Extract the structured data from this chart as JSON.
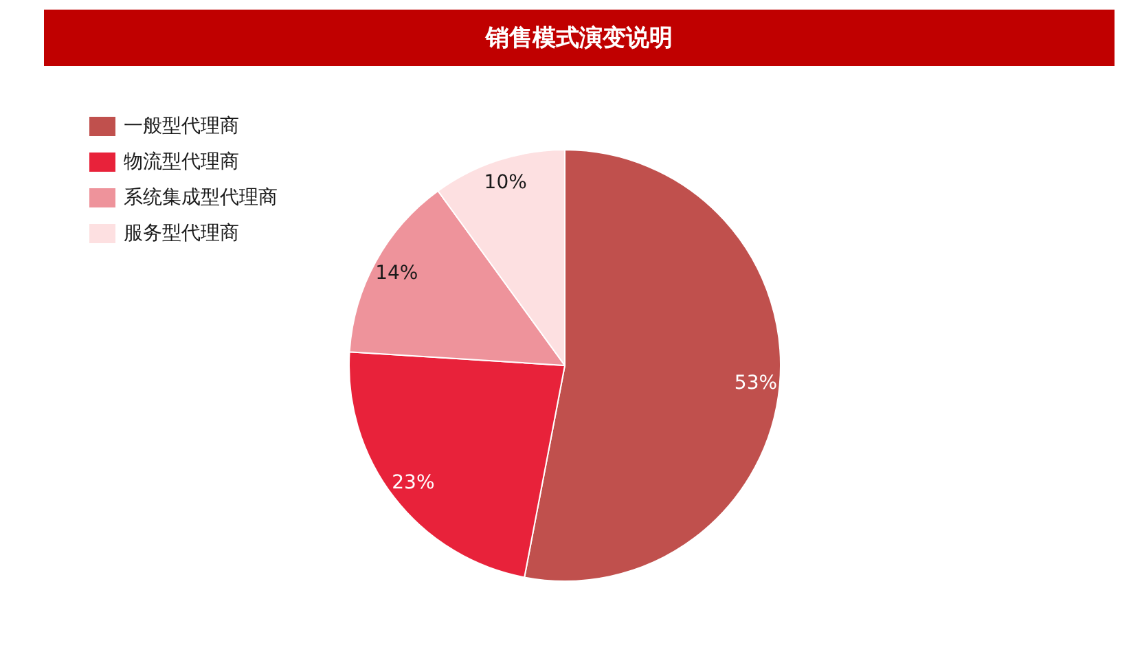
{
  "chart_data": {
    "type": "pie",
    "title": "销售模式演变说明",
    "categories": [
      "一般型代理商",
      "物流型代理商",
      "系统集成型代理商",
      "服务型代理商"
    ],
    "values": [
      53,
      23,
      14,
      10
    ],
    "colors": [
      "#c0504d",
      "#e8223a",
      "#ee939b",
      "#fde0e1"
    ],
    "value_labels": [
      "53%",
      "23%",
      "14%",
      "10%"
    ],
    "legend": "top left"
  }
}
